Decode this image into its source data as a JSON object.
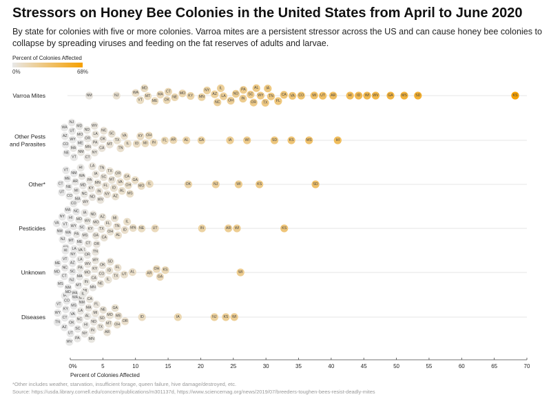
{
  "title": "Stressors on Honey Bee Colonies in the United States from April to June 2020",
  "subtitle": "By state for colonies with five or more colonies. Varroa mites are a persistent stressor across the US and can cause honey bee colonies to collapse by spreading viruses and feeding on the fat reserves of adults and larvae.",
  "legend": {
    "title": "Percent of Colonies Affected",
    "min_label": "0%",
    "max_label": "68%",
    "min_color": "#e8e8e8",
    "max_color": "#f6a000"
  },
  "footnote": "*Other includes weather, starvation, insufficient forage, queen failure, hive damage/destroyed, etc.",
  "source": "Source: https://usda.library.cornell.edu/concern/publications/m301137d, https://www.sciencemag.org/news/2019/07/breeders-toughen-bees-resist-deadly-mites",
  "chart_data": {
    "type": "scatter",
    "subtype": "beeswarm",
    "xlabel": "Percent of Colonies Affected",
    "xlim": [
      0,
      70
    ],
    "xticks": [
      "0%",
      "5",
      "10",
      "15",
      "20",
      "25",
      "30",
      "35",
      "40",
      "45",
      "50",
      "55",
      "60",
      "65",
      "70"
    ],
    "xtick_values": [
      0,
      5,
      10,
      15,
      20,
      25,
      30,
      35,
      40,
      45,
      50,
      55,
      60,
      65,
      70
    ],
    "color_scale": {
      "domain": [
        0,
        68
      ]
    },
    "rows": [
      {
        "label": [
          "Varroa Mites"
        ],
        "points": [
          [
            "NM",
            2.9
          ],
          [
            "NJ",
            7.1
          ],
          [
            "WA",
            10.1
          ],
          [
            "MD",
            11.5
          ],
          [
            "ME",
            12.7
          ],
          [
            "VT",
            10.8
          ],
          [
            "MT",
            11.9
          ],
          [
            "MA",
            13.9
          ],
          [
            "OK",
            14.9
          ],
          [
            "CT",
            15.0
          ],
          [
            "NE",
            16.0
          ],
          [
            "MO",
            17.1
          ],
          [
            "KY",
            18.4
          ],
          [
            "MN",
            20.2
          ],
          [
            "NY",
            21.2
          ],
          [
            "AZ",
            22.0
          ],
          [
            "NC",
            22.5
          ],
          [
            "IL",
            23.1
          ],
          [
            "LA",
            23.7
          ],
          [
            "OH",
            24.3
          ],
          [
            "ND",
            25.5
          ],
          [
            "IN",
            26.4
          ],
          [
            "PA",
            26.8
          ],
          [
            "SC",
            27.5
          ],
          [
            "OR",
            28.0
          ],
          [
            "AL",
            28.6
          ],
          [
            "WY",
            29.2
          ],
          [
            "TX",
            29.8
          ],
          [
            "IA",
            30.4
          ],
          [
            "TN",
            30.9
          ],
          [
            "FL",
            31.6
          ],
          [
            "CA",
            32.8
          ],
          [
            "VA",
            34.0
          ],
          [
            "CO",
            35.4
          ],
          [
            "MI",
            37.5
          ],
          [
            "UT",
            38.6
          ],
          [
            "AR",
            40.3
          ],
          [
            "HI",
            42.9
          ],
          [
            "ID",
            44.2
          ],
          [
            "WI",
            45.5
          ],
          [
            "WV",
            46.8
          ],
          [
            "GA",
            49.1
          ],
          [
            "MS",
            51.2
          ],
          [
            "SD",
            53.3
          ],
          [
            "KS",
            68.2
          ]
        ]
      },
      {
        "label": [
          "Other Pests",
          "and Parasites"
        ],
        "points": [
          [
            "WA",
            0.2
          ],
          [
            "CO",
            0.1
          ],
          [
            "VT",
            0.3
          ],
          [
            "NJ",
            0.5
          ],
          [
            "AZ",
            0.3
          ],
          [
            "ME",
            0.4
          ],
          [
            "UT",
            0.2
          ],
          [
            "WY",
            0.2
          ],
          [
            "NE",
            0.1
          ],
          [
            "MD",
            1.1
          ],
          [
            "MA",
            1.3
          ],
          [
            "MO",
            1.2
          ],
          [
            "CT",
            2.4
          ],
          [
            "NY",
            3.3
          ],
          [
            "ND",
            2.3
          ],
          [
            "NM",
            2.2
          ],
          [
            "OR",
            2.1
          ],
          [
            "WV",
            3.5
          ],
          [
            "OK",
            4.5
          ],
          [
            "CA",
            4.4
          ],
          [
            "PA",
            3.3
          ],
          [
            "MN",
            3.1
          ],
          [
            "LA",
            4.2
          ],
          [
            "NC",
            5.3
          ],
          [
            "MT",
            5.7
          ],
          [
            "SC",
            6.4
          ],
          [
            "TX",
            7.0
          ],
          [
            "TN",
            7.6
          ],
          [
            "VA",
            8.3
          ],
          [
            "IL",
            8.7
          ],
          [
            "ID",
            10.3
          ],
          [
            "MI",
            11.5
          ],
          [
            "IN",
            12.7
          ],
          [
            "KY",
            10.9
          ],
          [
            "OH",
            11.9
          ],
          [
            "FL",
            14.6
          ],
          [
            "AR",
            15.7
          ],
          [
            "AL",
            17.8
          ],
          [
            "GA",
            20.1
          ],
          [
            "IA",
            24.5
          ],
          [
            "WI",
            27.1
          ],
          [
            "SD",
            31.3
          ],
          [
            "KS",
            33.9
          ],
          [
            "MS",
            36.6
          ],
          [
            "HI",
            41.0
          ]
        ]
      },
      {
        "label": [
          "Other*"
        ],
        "points": [
          [
            "HI",
            1.2
          ],
          [
            "ME",
            0.1
          ],
          [
            "MA",
            0.5
          ],
          [
            "WA",
            1.7
          ],
          [
            "PA",
            2.7
          ],
          [
            "WV",
            3.8
          ],
          [
            "TN",
            4.7
          ],
          [
            "TX",
            5.8
          ],
          [
            "AZ",
            6.8
          ],
          [
            "CA",
            8.8
          ],
          [
            "UT",
            0.1
          ],
          [
            "VT",
            0.1
          ],
          [
            "MI",
            1.0
          ],
          [
            "WY",
            2.7
          ],
          [
            "LA",
            3.7
          ],
          [
            "FL",
            5.7
          ],
          [
            "AL",
            7.8
          ],
          [
            "CT",
            0.0
          ],
          [
            "NM",
            0.1
          ],
          [
            "CO",
            0.3
          ],
          [
            "MD",
            1.5
          ],
          [
            "ND",
            2.6
          ],
          [
            "IA",
            3.7
          ],
          [
            "IN",
            4.7
          ],
          [
            "NY",
            5.7
          ],
          [
            "OR",
            6.8
          ],
          [
            "MS",
            8.7
          ],
          [
            "GA",
            9.7
          ],
          [
            "VA",
            7.7
          ],
          [
            "SC",
            4.6
          ],
          [
            "ID",
            6.7
          ],
          [
            "OH",
            8.7
          ],
          [
            "NE",
            0.2
          ],
          [
            "AR",
            0.9
          ],
          [
            "NC",
            2.2
          ],
          [
            "KY",
            3.6
          ],
          [
            "MT",
            5.7
          ],
          [
            "MN",
            4.6
          ],
          [
            "MO",
            10.9
          ],
          [
            "IL",
            12.1
          ],
          [
            "OK",
            18.1
          ],
          [
            "NJ",
            22.3
          ],
          [
            "WI",
            25.8
          ],
          [
            "KS",
            29.0
          ],
          [
            "SD",
            37.6
          ]
        ]
      },
      {
        "label": [
          "Pesticides"
        ],
        "points": [
          [
            "MA",
            0.1
          ],
          [
            "NM",
            0.0
          ],
          [
            "LA",
            0.1
          ],
          [
            "CO",
            0.4
          ],
          [
            "IA",
            1.6
          ],
          [
            "SD",
            0.0
          ],
          [
            "VA",
            0.1
          ],
          [
            "NJ",
            0.1
          ],
          [
            "PA",
            1.1
          ],
          [
            "WV",
            2.3
          ],
          [
            "OR",
            3.4
          ],
          [
            "AZ",
            4.6
          ],
          [
            "FL",
            5.7
          ],
          [
            "SC",
            0.1
          ],
          [
            "NC",
            0.1
          ],
          [
            "ME",
            0.5
          ],
          [
            "OK",
            1.7
          ],
          [
            "ND",
            2.9
          ],
          [
            "GA",
            4.0
          ],
          [
            "CA",
            5.2
          ],
          [
            "MI",
            6.4
          ],
          [
            "AL",
            7.6
          ],
          [
            "IL",
            8.7
          ],
          [
            "NY",
            0.0
          ],
          [
            "MT",
            0.1
          ],
          [
            "HI",
            0.1
          ],
          [
            "MD",
            1.2
          ],
          [
            "CT",
            2.4
          ],
          [
            "MO",
            3.5
          ],
          [
            "TX",
            4.7
          ],
          [
            "OH",
            5.9
          ],
          [
            "TN",
            7.1
          ],
          [
            "ID",
            8.3
          ],
          [
            "MN",
            9.5
          ],
          [
            "VT",
            0.1
          ],
          [
            "WA",
            0.1
          ],
          [
            "WY",
            0.7
          ],
          [
            "MS",
            1.9
          ],
          [
            "KY",
            3.0
          ],
          [
            "NE",
            10.8
          ],
          [
            "UT",
            13.0
          ],
          [
            "IN",
            20.2
          ],
          [
            "AR",
            24.3
          ],
          [
            "WI",
            25.5
          ],
          [
            "KS",
            32.8
          ]
        ]
      },
      {
        "label": [
          "Unknown"
        ],
        "points": [
          [
            "VT",
            0.0
          ],
          [
            "MS",
            0.1
          ],
          [
            "MT",
            0.5
          ],
          [
            "OR",
            1.7
          ],
          [
            "CA",
            3.5
          ],
          [
            "NE",
            4.7
          ],
          [
            "HI",
            0.0
          ],
          [
            "MD",
            0.1
          ],
          [
            "IA",
            0.1
          ],
          [
            "VA",
            1.2
          ],
          [
            "MI",
            2.4
          ],
          [
            "SD",
            5.5
          ],
          [
            "ME",
            0.0
          ],
          [
            "NM",
            0.1
          ],
          [
            "NY",
            0.2
          ],
          [
            "MA",
            0.8
          ],
          [
            "ND",
            1.9
          ],
          [
            "TN",
            3.1
          ],
          [
            "OK",
            4.3
          ],
          [
            "TX",
            6.3
          ],
          [
            "UT",
            8.0
          ],
          [
            "CT",
            0.0
          ],
          [
            "SC",
            0.1
          ],
          [
            "WA",
            0.3
          ],
          [
            "MN",
            1.5
          ],
          [
            "WV",
            2.6
          ],
          [
            "KY",
            3.8
          ],
          [
            "IL",
            5.0
          ],
          [
            "FL",
            7.3
          ],
          [
            "AZ",
            0.1
          ],
          [
            "NJ",
            0.1
          ],
          [
            "LA",
            1.0
          ],
          [
            "IN",
            2.2
          ],
          [
            "WY",
            3.3
          ],
          [
            "CO",
            4.5
          ],
          [
            "ID",
            5.9
          ],
          [
            "NC",
            0.6
          ],
          [
            "PA",
            1.7
          ],
          [
            "MO",
            2.8
          ],
          [
            "AL",
            9.4
          ],
          [
            "AR",
            12.2
          ],
          [
            "GA",
            13.8
          ],
          [
            "OH",
            13.2
          ],
          [
            "KS",
            14.5
          ],
          [
            "WI",
            26.1
          ]
        ]
      },
      {
        "label": [
          "Diseases"
        ],
        "points": [
          [
            "IL",
            1.4
          ],
          [
            "WV",
            0.2
          ],
          [
            "MN",
            2.2
          ],
          [
            "VT",
            0.0
          ],
          [
            "AZ",
            0.1
          ],
          [
            "HI",
            1.1
          ],
          [
            "CA",
            3.1
          ],
          [
            "WA",
            0.1
          ],
          [
            "AR",
            5.2
          ],
          [
            "TN",
            0.1
          ],
          [
            "MD",
            0.0
          ],
          [
            "PA",
            1.0
          ],
          [
            "AL",
            2.0
          ],
          [
            "TX",
            4.1
          ],
          [
            "ME",
            7.1
          ],
          [
            "MT",
            6.0
          ],
          [
            "KY",
            0.1
          ],
          [
            "NE",
            5.0
          ],
          [
            "OR",
            8.1
          ],
          [
            "VA",
            0.1
          ],
          [
            "NY",
            1.9
          ],
          [
            "IN",
            3.0
          ],
          [
            "GA",
            7.0
          ],
          [
            "WY",
            0.0
          ],
          [
            "NM",
            0.8
          ],
          [
            "FL",
            3.9
          ],
          [
            "MO",
            5.9
          ],
          [
            "UT",
            0.1
          ],
          [
            "MA",
            2.8
          ],
          [
            "SD",
            4.8
          ],
          [
            "CO",
            0.1
          ],
          [
            "LA",
            1.7
          ],
          [
            "ND",
            2.6
          ],
          [
            "OH",
            6.8
          ],
          [
            "CT",
            0.1
          ],
          [
            "SC",
            0.6
          ],
          [
            "MI",
            3.7
          ],
          [
            "NC",
            1.6
          ],
          [
            "MS",
            0.1
          ],
          [
            "OK",
            0.5
          ],
          [
            "ID",
            11.0
          ],
          [
            "IA",
            16.5
          ],
          [
            "NJ",
            22.1
          ],
          [
            "KS",
            23.9
          ],
          [
            "WI",
            25.1
          ]
        ]
      }
    ]
  }
}
